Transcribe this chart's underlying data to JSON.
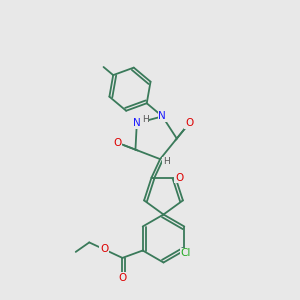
{
  "background_color": "#e8e8e8",
  "bond_color": "#3a7a5a",
  "bond_width": 1.3,
  "atom_colors": {
    "N": "#1a1aff",
    "O": "#dd0000",
    "Cl": "#22aa22",
    "H": "#555555",
    "C": "#3a7a5a"
  },
  "fs": 7.0,
  "figsize": [
    3.0,
    3.0
  ],
  "dpi": 100
}
